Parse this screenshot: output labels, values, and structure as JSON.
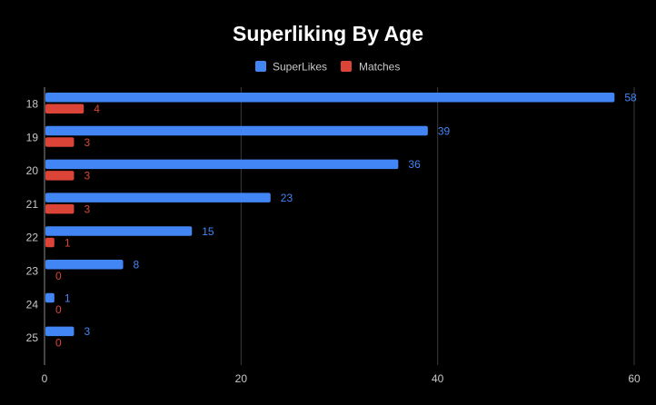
{
  "chart_data": {
    "type": "bar",
    "orientation": "horizontal",
    "title": "Superliking By Age",
    "categories": [
      "18",
      "19",
      "20",
      "21",
      "22",
      "23",
      "24",
      "25"
    ],
    "series": [
      {
        "name": "SuperLikes",
        "color": "#4285f4",
        "values": [
          58,
          39,
          36,
          23,
          15,
          8,
          1,
          3
        ]
      },
      {
        "name": "Matches",
        "color": "#db4437",
        "values": [
          4,
          3,
          3,
          3,
          1,
          0,
          0,
          0
        ]
      }
    ],
    "xlim": [
      0,
      60
    ],
    "xticks": [
      0,
      20,
      40,
      60
    ],
    "grid": true,
    "legend_position": "top-center",
    "data_labels": true,
    "background": "#000000"
  }
}
